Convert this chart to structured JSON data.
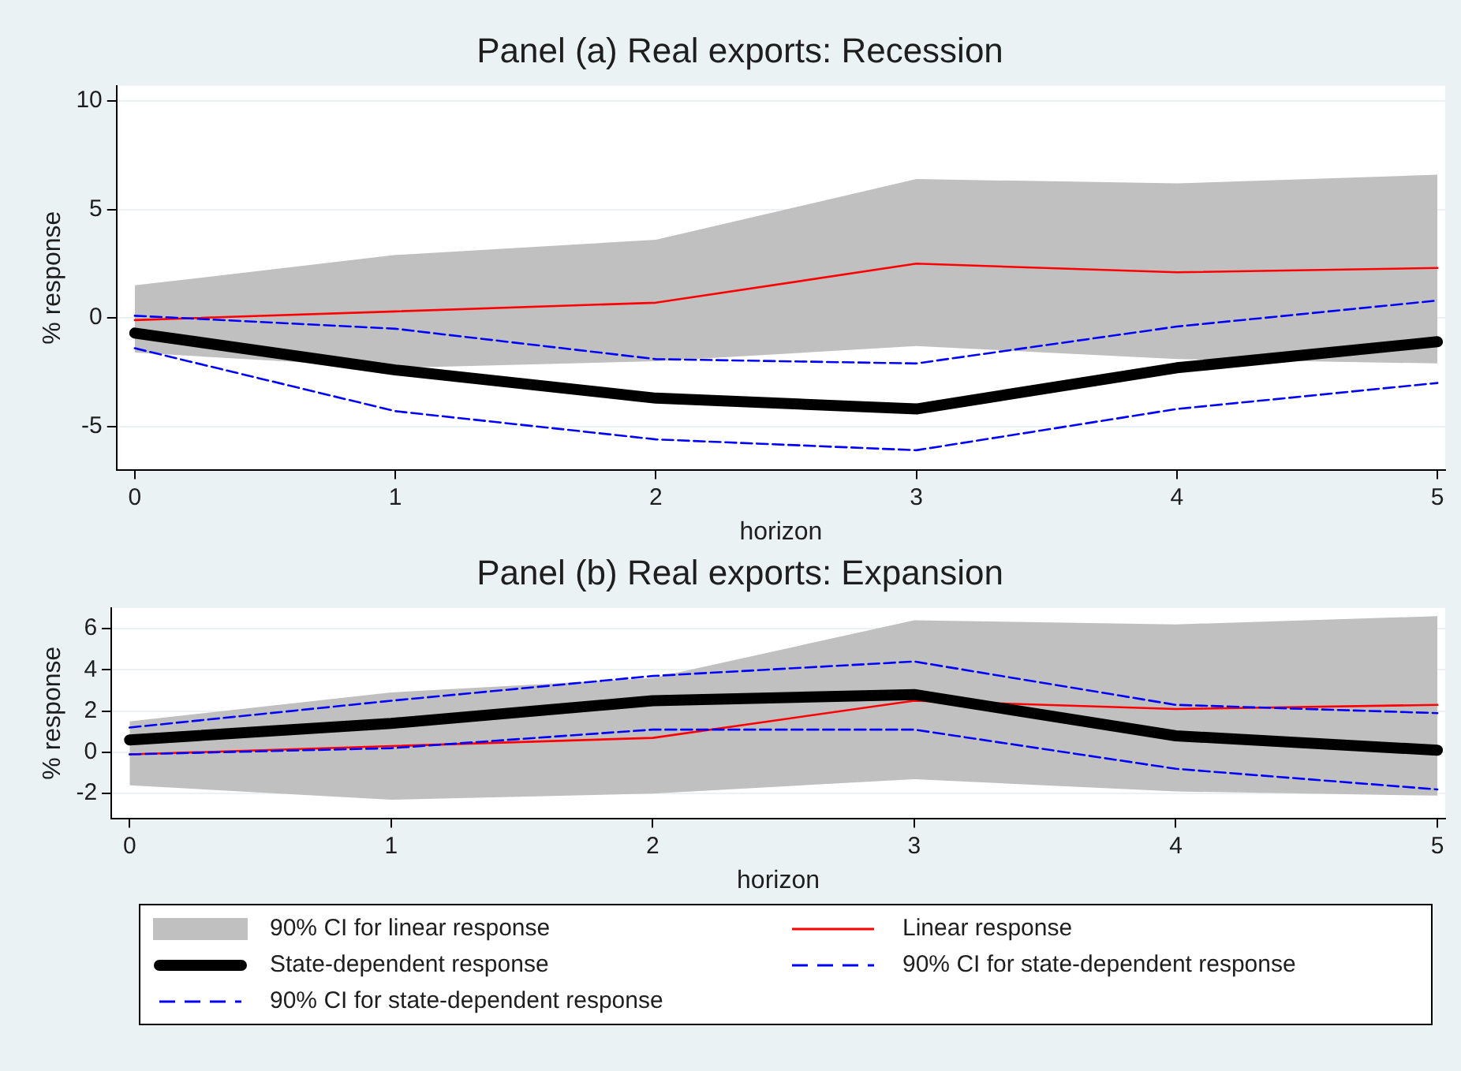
{
  "chart_data": [
    {
      "type": "line",
      "title": "Panel (a) Real exports: Recession",
      "xlabel": "horizon",
      "ylabel": "% response",
      "x": [
        0,
        1,
        2,
        3,
        4,
        5
      ],
      "xlim": [
        -0.07,
        5.03
      ],
      "xticks": [
        0,
        1,
        2,
        3,
        4,
        5
      ],
      "ylim": [
        -7,
        10.7
      ],
      "yticks": [
        -5,
        0,
        5,
        10
      ],
      "grid": "y",
      "legend": false,
      "series": [
        {
          "color": "#ff0000",
          "values": [
            -0.1,
            0.3,
            0.7,
            2.5,
            2.1,
            2.3
          ],
          "lower": [
            -1.6,
            -2.3,
            -2.0,
            -1.3,
            -1.9,
            -2.1
          ],
          "upper": [
            1.5,
            2.9,
            3.6,
            6.4,
            6.2,
            6.6
          ]
        },
        {
          "color": "#000000",
          "values": [
            -0.7,
            -2.4,
            -3.7,
            -4.2,
            -2.3,
            -1.1
          ]
        },
        {
          "color": "#0000ff",
          "line_style": "dashed",
          "values": [
            0.1,
            -0.5,
            -1.9,
            -2.1,
            -0.4,
            0.8
          ]
        },
        {
          "color": "#0000ff",
          "line_style": "dashed",
          "values": [
            -1.4,
            -4.3,
            -5.6,
            -6.1,
            -4.2,
            -3.0
          ]
        }
      ]
    },
    {
      "type": "line",
      "title": "Panel (b) Real exports: Expansion",
      "xlabel": "horizon",
      "ylabel": "% response",
      "x": [
        0,
        1,
        2,
        3,
        4,
        5
      ],
      "xlim": [
        -0.07,
        5.03
      ],
      "xticks": [
        0,
        1,
        2,
        3,
        4,
        5
      ],
      "ylim": [
        -3.2,
        7
      ],
      "yticks": [
        -2,
        0,
        2,
        4,
        6
      ],
      "grid": "y",
      "legend": "bottom",
      "annotations": [
        "90% CI for linear response"
      ],
      "series": [
        {
          "name": "Linear response",
          "color": "#ff0000",
          "values": [
            -0.1,
            0.3,
            0.7,
            2.5,
            2.1,
            2.3
          ],
          "lower": [
            -1.6,
            -2.3,
            -2.0,
            -1.3,
            -1.9,
            -2.1
          ],
          "upper": [
            1.5,
            2.9,
            3.6,
            6.4,
            6.2,
            6.6
          ]
        },
        {
          "name": "State-dependent response",
          "color": "#000000",
          "values": [
            0.6,
            1.4,
            2.5,
            2.8,
            0.8,
            0.1
          ]
        },
        {
          "name": "90% CI for state-dependent response",
          "color": "#0000ff",
          "line_style": "dashed",
          "values": [
            1.2,
            2.5,
            3.7,
            4.4,
            2.3,
            1.9
          ]
        },
        {
          "name": "90% CI for state-dependent response",
          "color": "#0000ff",
          "line_style": "dashed",
          "values": [
            -0.1,
            0.2,
            1.1,
            1.1,
            -0.8,
            -1.8
          ]
        }
      ]
    }
  ]
}
